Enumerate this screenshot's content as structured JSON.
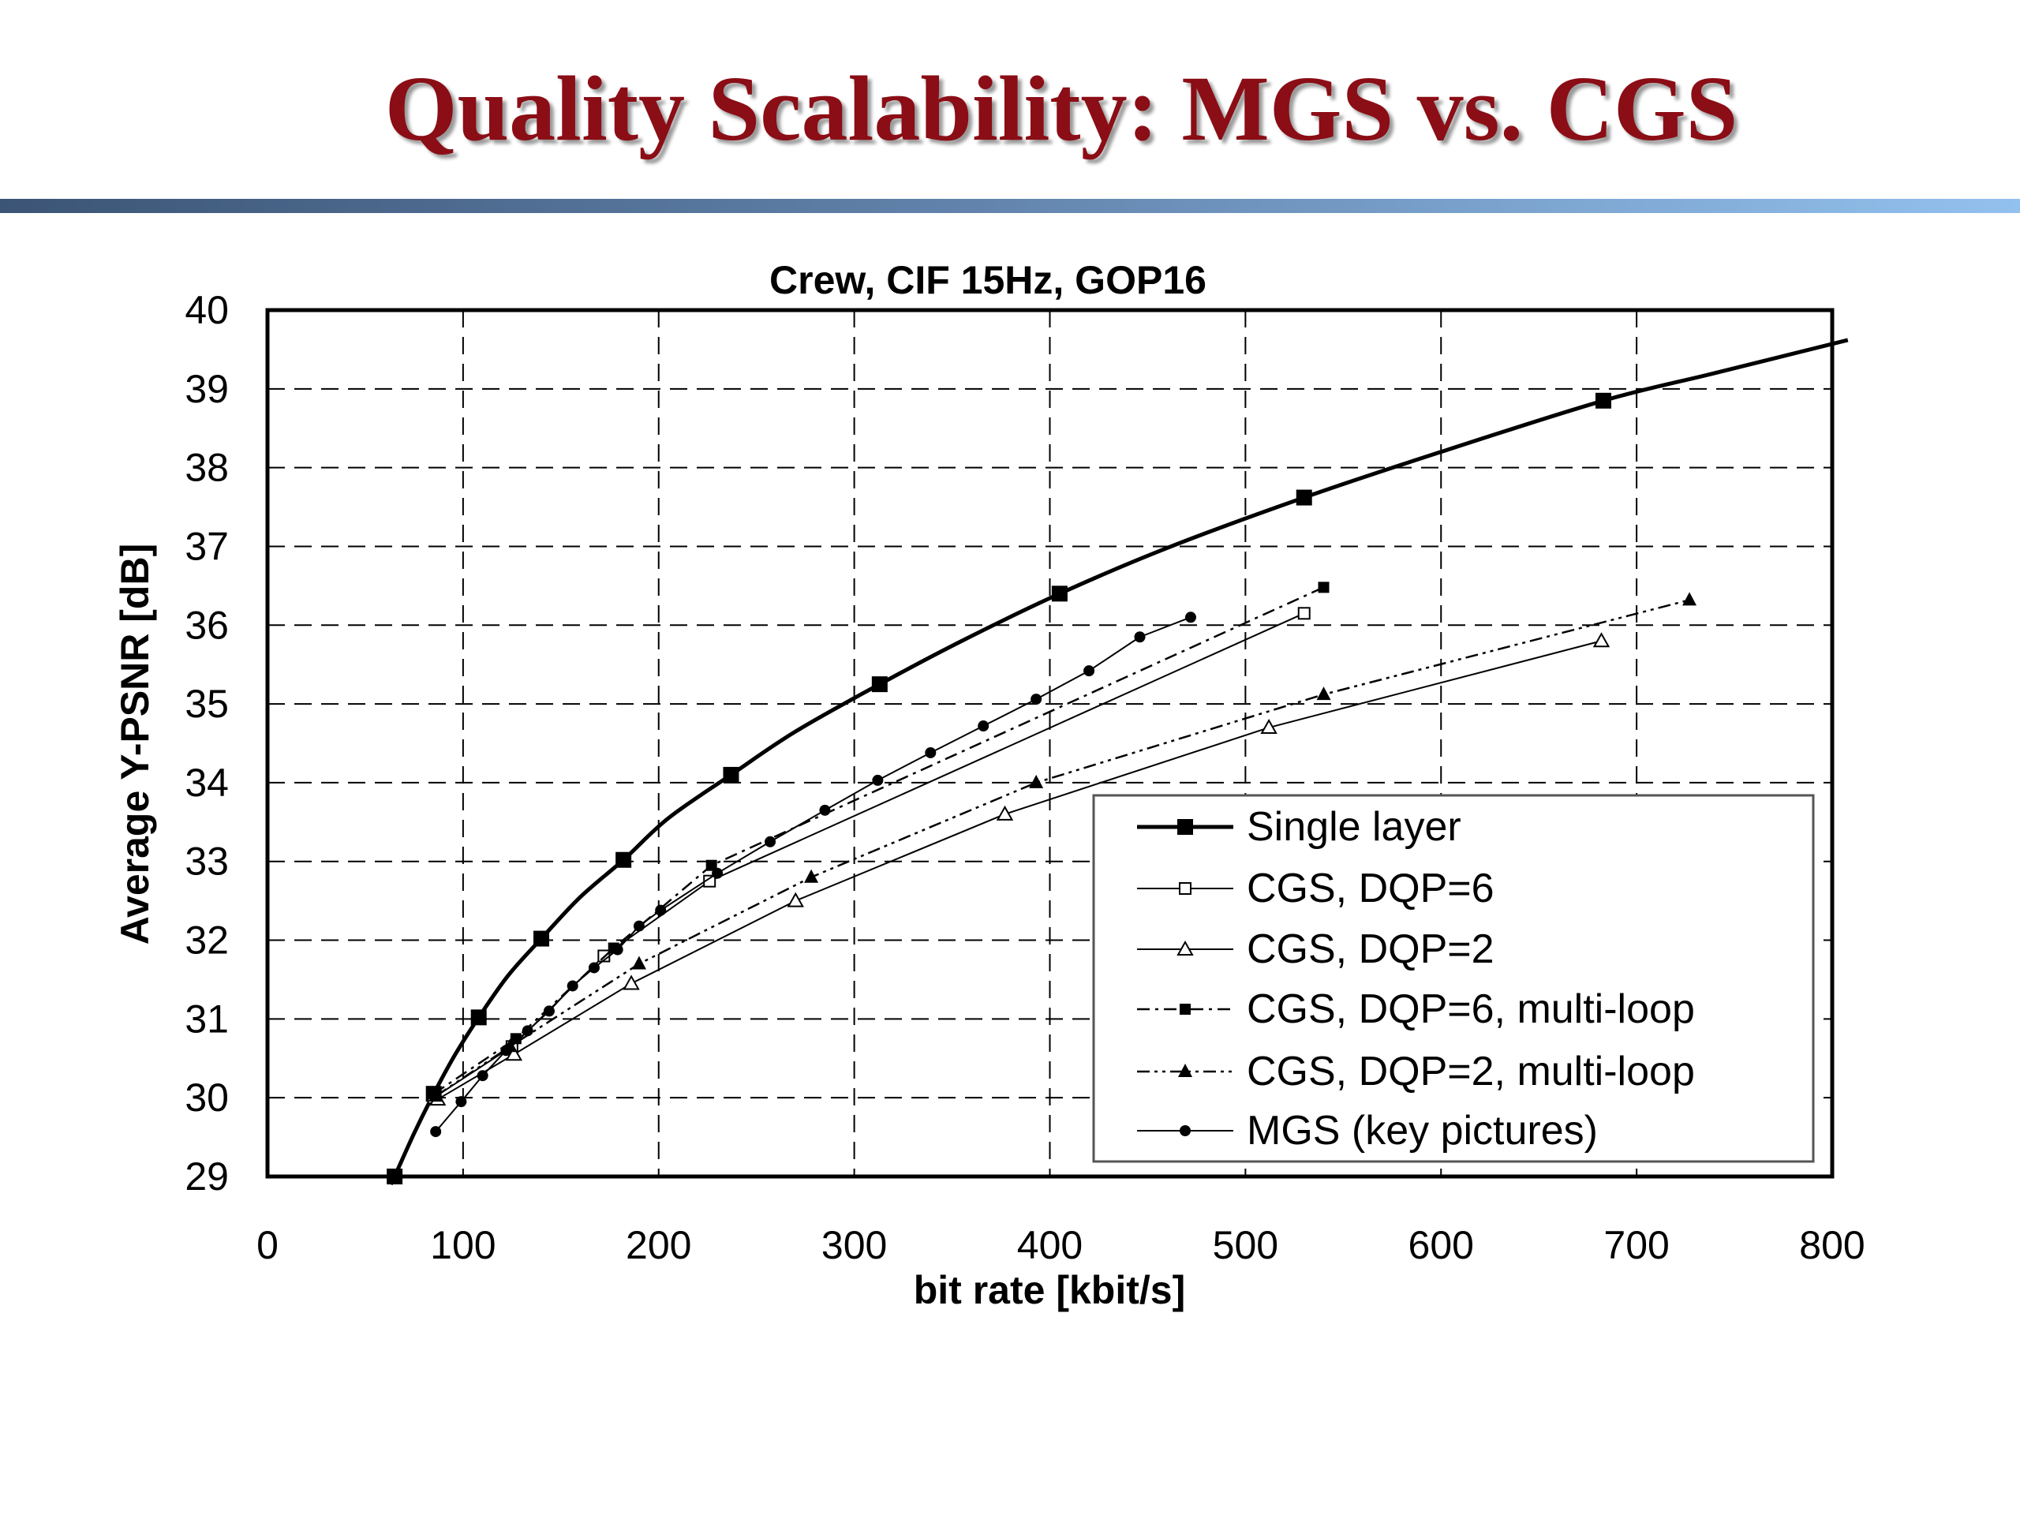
{
  "slide": {
    "title": "Quality Scalability: MGS vs. CGS",
    "title_color": "#8b0d15"
  },
  "chart_data": {
    "type": "line",
    "title": "Crew, CIF 15Hz, GOP16",
    "xlabel": "bit rate [kbit/s]",
    "ylabel": "Average Y-PSNR [dB]",
    "xlim": [
      0,
      800
    ],
    "ylim": [
      29,
      40
    ],
    "xticks": [
      "0",
      "100",
      "200",
      "300",
      "400",
      "500",
      "600",
      "700",
      "800"
    ],
    "yticks": [
      "29",
      "30",
      "31",
      "32",
      "33",
      "34",
      "35",
      "36",
      "37",
      "38",
      "39",
      "40"
    ],
    "grid": true,
    "grid_style": "dashed",
    "legend_position": "bottom-right",
    "series": [
      {
        "name": "Single layer",
        "marker": "filled-square",
        "line": "solid-thick",
        "points": [
          [
            65,
            29.0
          ],
          [
            85,
            30.05
          ],
          [
            108,
            31.02
          ],
          [
            140,
            32.02
          ],
          [
            182,
            33.02
          ],
          [
            237,
            34.1
          ],
          [
            313,
            35.25
          ],
          [
            405,
            36.4
          ],
          [
            530,
            37.62
          ],
          [
            683,
            38.85
          ]
        ],
        "curve": [
          [
            63,
            28.9
          ],
          [
            65,
            29.0
          ],
          [
            75,
            29.55
          ],
          [
            85,
            30.05
          ],
          [
            96,
            30.55
          ],
          [
            108,
            31.02
          ],
          [
            123,
            31.55
          ],
          [
            140,
            32.02
          ],
          [
            160,
            32.55
          ],
          [
            182,
            33.02
          ],
          [
            205,
            33.55
          ],
          [
            237,
            34.1
          ],
          [
            270,
            34.65
          ],
          [
            313,
            35.25
          ],
          [
            355,
            35.8
          ],
          [
            405,
            36.4
          ],
          [
            460,
            36.98
          ],
          [
            530,
            37.62
          ],
          [
            600,
            38.2
          ],
          [
            683,
            38.85
          ],
          [
            740,
            39.2
          ],
          [
            808,
            39.62
          ]
        ]
      },
      {
        "name": "CGS, DQP=6",
        "marker": "open-square",
        "line": "solid-thin",
        "points": [
          [
            85,
            30.0
          ],
          [
            125,
            30.65
          ],
          [
            172,
            31.8
          ],
          [
            226,
            32.75
          ],
          [
            530,
            36.15
          ]
        ]
      },
      {
        "name": "CGS, DQP=2",
        "marker": "open-triangle",
        "line": "solid-thin",
        "points": [
          [
            87,
            29.98
          ],
          [
            126,
            30.55
          ],
          [
            186,
            31.45
          ],
          [
            270,
            32.5
          ],
          [
            377,
            33.6
          ],
          [
            512,
            34.7
          ],
          [
            682,
            35.8
          ]
        ]
      },
      {
        "name": "CGS, DQP=6, multi-loop",
        "marker": "filled-square-small",
        "line": "dash-dot",
        "points": [
          [
            85,
            30.05
          ],
          [
            127,
            30.75
          ],
          [
            177,
            31.9
          ],
          [
            227,
            32.95
          ],
          [
            540,
            36.48
          ]
        ]
      },
      {
        "name": "CGS, DQP=2, multi-loop",
        "marker": "filled-triangle",
        "line": "dash-dot-dot",
        "points": [
          [
            86,
            30.02
          ],
          [
            124,
            30.65
          ],
          [
            190,
            31.7
          ],
          [
            278,
            32.8
          ],
          [
            393,
            34.0
          ],
          [
            540,
            35.12
          ],
          [
            727,
            36.32
          ]
        ]
      },
      {
        "name": "MGS (key pictures)",
        "marker": "filled-circle",
        "line": "solid-thin",
        "points": [
          [
            86,
            29.57
          ],
          [
            99,
            29.95
          ],
          [
            110,
            30.28
          ],
          [
            122,
            30.6
          ],
          [
            133,
            30.85
          ],
          [
            144,
            31.1
          ],
          [
            156,
            31.42
          ],
          [
            167,
            31.65
          ],
          [
            179,
            31.88
          ],
          [
            190,
            32.18
          ],
          [
            201,
            32.38
          ],
          [
            230,
            32.85
          ],
          [
            257,
            33.25
          ],
          [
            285,
            33.65
          ],
          [
            312,
            34.03
          ],
          [
            339,
            34.38
          ],
          [
            366,
            34.72
          ],
          [
            393,
            35.06
          ],
          [
            420,
            35.42
          ],
          [
            446,
            35.85
          ],
          [
            472,
            36.1
          ]
        ]
      }
    ]
  }
}
